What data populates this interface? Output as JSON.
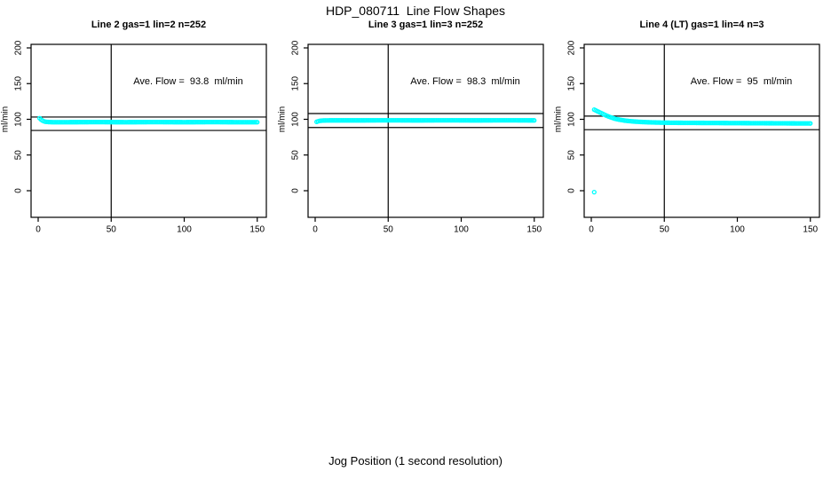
{
  "figure": {
    "main_title": "HDP_080711  Line Flow Shapes",
    "x_axis_label": "Jog Position (1 second resolution)",
    "background_color": "#ffffff",
    "point_color": "#00ffff",
    "axis_color": "#000000"
  },
  "chart_data": {
    "type": "scatter",
    "title": "HDP_080711  Line Flow Shapes",
    "xlabel": "Jog Position (1 second resolution)",
    "ylabel": "ml/min",
    "x_ticks": [
      0,
      50,
      100,
      150
    ],
    "y_ticks": [
      0,
      50,
      100,
      150,
      200
    ],
    "xlim": [
      0,
      155
    ],
    "ylim": [
      -10,
      215
    ],
    "grid": false,
    "legend": "none",
    "marker": "open-circle",
    "marker_color": "#00ffff",
    "panels": [
      {
        "title": "Line 2 gas=1 lin=2 n=252",
        "annotation": "Ave. Flow =  93.8  ml/min",
        "ave_flow_ml_min": 93.8,
        "ref_lines_h": [
          103.2,
          84.4
        ],
        "ref_line_v": 50,
        "series_control_points": [
          [
            1,
            101.5
          ],
          [
            2,
            99.5
          ],
          [
            3,
            98.2
          ],
          [
            4,
            97.2
          ],
          [
            5,
            96.6
          ],
          [
            7,
            96.2
          ],
          [
            10,
            96.0
          ],
          [
            20,
            96.0
          ],
          [
            40,
            96.1
          ],
          [
            60,
            96.0
          ],
          [
            80,
            96.1
          ],
          [
            100,
            96.0
          ],
          [
            120,
            96.1
          ],
          [
            135,
            96.0
          ],
          [
            150,
            96.0
          ]
        ],
        "outliers": []
      },
      {
        "title": "Line 3 gas=1 lin=3 n=252",
        "annotation": "Ave. Flow =  98.3  ml/min",
        "ave_flow_ml_min": 98.3,
        "ref_lines_h": [
          108.1,
          88.5
        ],
        "ref_line_v": 50,
        "series_control_points": [
          [
            1,
            96.5
          ],
          [
            2,
            97.2
          ],
          [
            3,
            97.8
          ],
          [
            5,
            98.3
          ],
          [
            10,
            98.5
          ],
          [
            30,
            98.5
          ],
          [
            50,
            98.6
          ],
          [
            70,
            98.5
          ],
          [
            90,
            98.6
          ],
          [
            110,
            98.5
          ],
          [
            130,
            98.6
          ],
          [
            150,
            98.5
          ]
        ],
        "outliers": []
      },
      {
        "title": "Line 4 (LT) gas=1 lin=4 n=3",
        "annotation": "Ave. Flow =  95  ml/min",
        "ave_flow_ml_min": 95,
        "ref_lines_h": [
          104.5,
          85.5
        ],
        "ref_line_v": 50,
        "series_control_points": [
          [
            2,
            113.5
          ],
          [
            3,
            112.5
          ],
          [
            4,
            111.5
          ],
          [
            5,
            110.5
          ],
          [
            6,
            109.5
          ],
          [
            7,
            108.5
          ],
          [
            8,
            107.5
          ],
          [
            9,
            106.5
          ],
          [
            10,
            105.5
          ],
          [
            12,
            103.8
          ],
          [
            14,
            102.3
          ],
          [
            16,
            101.0
          ],
          [
            18,
            100.0
          ],
          [
            20,
            99.2
          ],
          [
            23,
            98.2
          ],
          [
            26,
            97.5
          ],
          [
            30,
            96.8
          ],
          [
            35,
            96.2
          ],
          [
            40,
            95.8
          ],
          [
            45,
            95.5
          ],
          [
            50,
            95.3
          ],
          [
            60,
            95.1
          ],
          [
            70,
            95.0
          ],
          [
            80,
            94.9
          ],
          [
            90,
            94.8
          ],
          [
            100,
            94.7
          ],
          [
            110,
            94.6
          ],
          [
            120,
            94.5
          ],
          [
            130,
            94.4
          ],
          [
            140,
            94.3
          ],
          [
            150,
            94.2
          ]
        ],
        "outliers": [
          [
            2,
            -2
          ]
        ]
      }
    ]
  }
}
